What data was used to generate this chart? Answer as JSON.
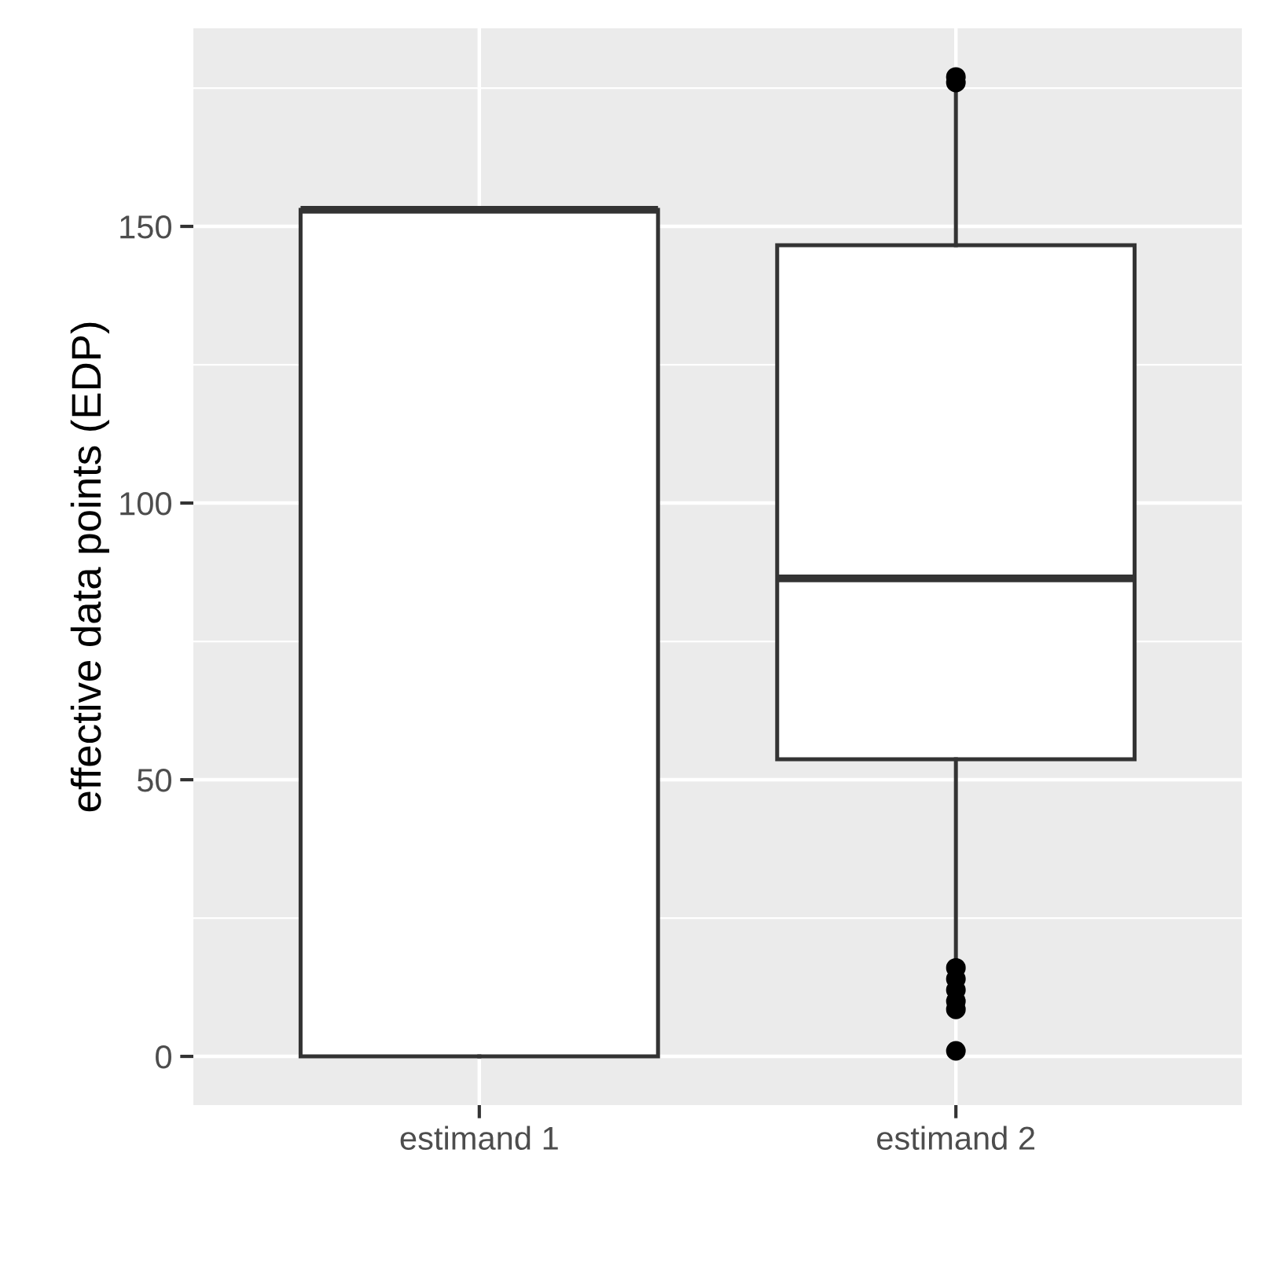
{
  "chart_data": {
    "type": "box",
    "ylabel": "effective data points (EDP)",
    "categories": [
      "estimand 1",
      "estimand 2"
    ],
    "boxes": [
      {
        "low": 0,
        "q1": 0,
        "median": 153,
        "q3": 153,
        "high": 153
      },
      {
        "low": 17,
        "q1": 53.7,
        "median": 86.4,
        "q3": 146.6,
        "high": 175,
        "outliers": [
          176,
          177,
          16,
          14,
          12,
          10,
          8.5,
          1
        ]
      }
    ],
    "ylim": [
      -8.8,
      185.8
    ],
    "yticks": [
      0,
      50,
      100,
      150
    ],
    "grid": true,
    "color": "#333333"
  }
}
